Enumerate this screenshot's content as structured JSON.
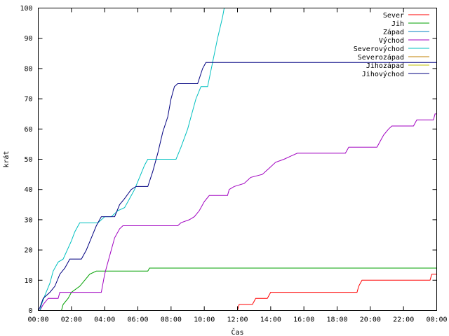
{
  "chart_data": {
    "type": "line",
    "title": "",
    "xlabel": "Čas",
    "ylabel": "krát",
    "xlim": [
      0,
      24
    ],
    "ylim": [
      0,
      100
    ],
    "x_ticks": [
      {
        "value": 0,
        "label": "00:00"
      },
      {
        "value": 2,
        "label": "02:00"
      },
      {
        "value": 4,
        "label": "04:00"
      },
      {
        "value": 6,
        "label": "06:00"
      },
      {
        "value": 8,
        "label": "08:00"
      },
      {
        "value": 10,
        "label": "10:00"
      },
      {
        "value": 12,
        "label": "12:00"
      },
      {
        "value": 14,
        "label": "14:00"
      },
      {
        "value": 16,
        "label": "16:00"
      },
      {
        "value": 18,
        "label": "18:00"
      },
      {
        "value": 20,
        "label": "20:00"
      },
      {
        "value": 22,
        "label": "22:00"
      },
      {
        "value": 24,
        "label": "00:00"
      }
    ],
    "y_ticks": [
      0,
      10,
      20,
      30,
      40,
      50,
      60,
      70,
      80,
      90,
      100
    ],
    "grid": false,
    "legend_position": "top-right",
    "series": [
      {
        "name": "Sever",
        "color": "#ff0000",
        "points": [
          [
            12.0,
            0
          ],
          [
            12.1,
            2
          ],
          [
            12.9,
            2
          ],
          [
            13.0,
            3
          ],
          [
            13.1,
            4
          ],
          [
            13.8,
            4
          ],
          [
            14.0,
            6
          ],
          [
            19.2,
            6
          ],
          [
            19.3,
            8
          ],
          [
            19.5,
            10
          ],
          [
            23.6,
            10
          ],
          [
            23.7,
            12
          ],
          [
            24.0,
            12
          ]
        ]
      },
      {
        "name": "Jih",
        "color": "#00a000",
        "points": [
          [
            1.4,
            0
          ],
          [
            1.5,
            2
          ],
          [
            1.8,
            4
          ],
          [
            2.0,
            6
          ],
          [
            2.5,
            8
          ],
          [
            2.8,
            10
          ],
          [
            3.1,
            12
          ],
          [
            3.5,
            13
          ],
          [
            6.6,
            13
          ],
          [
            6.7,
            14
          ],
          [
            24.0,
            14
          ]
        ]
      },
      {
        "name": "Západ",
        "color": "#0080c0",
        "points": []
      },
      {
        "name": "Východ",
        "color": "#a000c0",
        "points": [
          [
            0.1,
            0
          ],
          [
            0.3,
            2
          ],
          [
            0.6,
            4
          ],
          [
            1.2,
            4
          ],
          [
            1.3,
            6
          ],
          [
            3.8,
            6
          ],
          [
            4.0,
            12
          ],
          [
            4.1,
            14
          ],
          [
            4.4,
            20
          ],
          [
            4.6,
            24
          ],
          [
            4.9,
            27
          ],
          [
            5.1,
            28
          ],
          [
            8.4,
            28
          ],
          [
            8.6,
            29
          ],
          [
            9.1,
            30
          ],
          [
            9.4,
            31
          ],
          [
            9.7,
            33
          ],
          [
            10.0,
            36
          ],
          [
            10.3,
            38
          ],
          [
            11.4,
            38
          ],
          [
            11.5,
            40
          ],
          [
            11.8,
            41
          ],
          [
            12.4,
            42
          ],
          [
            12.8,
            44
          ],
          [
            13.5,
            45
          ],
          [
            13.9,
            47
          ],
          [
            14.3,
            49
          ],
          [
            14.8,
            50
          ],
          [
            15.2,
            51
          ],
          [
            15.6,
            52
          ],
          [
            18.5,
            52
          ],
          [
            18.7,
            54
          ],
          [
            20.4,
            54
          ],
          [
            20.6,
            56
          ],
          [
            20.8,
            58
          ],
          [
            21.1,
            60
          ],
          [
            21.3,
            61
          ],
          [
            22.6,
            61
          ],
          [
            22.8,
            63
          ],
          [
            23.8,
            63
          ],
          [
            23.9,
            65
          ],
          [
            24.0,
            65
          ]
        ]
      },
      {
        "name": "Severovýchod",
        "color": "#00c0c0",
        "points": [
          [
            0.1,
            0
          ],
          [
            0.2,
            2
          ],
          [
            0.4,
            5
          ],
          [
            0.7,
            9
          ],
          [
            0.9,
            13
          ],
          [
            1.2,
            16
          ],
          [
            1.5,
            17
          ],
          [
            2.0,
            23
          ],
          [
            2.2,
            26
          ],
          [
            2.5,
            29
          ],
          [
            3.6,
            29
          ],
          [
            4.0,
            31
          ],
          [
            4.4,
            31
          ],
          [
            4.8,
            33
          ],
          [
            5.2,
            34
          ],
          [
            5.5,
            37
          ],
          [
            5.8,
            40
          ],
          [
            6.1,
            44
          ],
          [
            6.4,
            48
          ],
          [
            6.6,
            50
          ],
          [
            8.3,
            50
          ],
          [
            8.6,
            54
          ],
          [
            9.0,
            60
          ],
          [
            9.2,
            64
          ],
          [
            9.5,
            70
          ],
          [
            9.8,
            74
          ],
          [
            10.2,
            74
          ],
          [
            10.5,
            82
          ],
          [
            10.8,
            90
          ],
          [
            11.1,
            97
          ],
          [
            11.2,
            100
          ]
        ]
      },
      {
        "name": "Severozápad",
        "color": "#c08000",
        "points": []
      },
      {
        "name": "Jihozápad",
        "color": "#c0c000",
        "points": []
      },
      {
        "name": "Jihovýchod",
        "color": "#000080",
        "points": [
          [
            0.0,
            0
          ],
          [
            0.1,
            1
          ],
          [
            0.3,
            4
          ],
          [
            0.7,
            6
          ],
          [
            1.0,
            8
          ],
          [
            1.3,
            12
          ],
          [
            1.6,
            14
          ],
          [
            1.9,
            17
          ],
          [
            2.6,
            17
          ],
          [
            2.9,
            20
          ],
          [
            3.2,
            24
          ],
          [
            3.5,
            28
          ],
          [
            3.8,
            31
          ],
          [
            4.6,
            31
          ],
          [
            4.9,
            35
          ],
          [
            5.2,
            37
          ],
          [
            5.6,
            40
          ],
          [
            5.9,
            41
          ],
          [
            6.6,
            41
          ],
          [
            6.9,
            46
          ],
          [
            7.2,
            52
          ],
          [
            7.5,
            59
          ],
          [
            7.8,
            64
          ],
          [
            8.0,
            70
          ],
          [
            8.2,
            74
          ],
          [
            8.4,
            75
          ],
          [
            9.6,
            75
          ],
          [
            9.9,
            80
          ],
          [
            10.1,
            82
          ],
          [
            24.0,
            82
          ]
        ]
      }
    ]
  }
}
